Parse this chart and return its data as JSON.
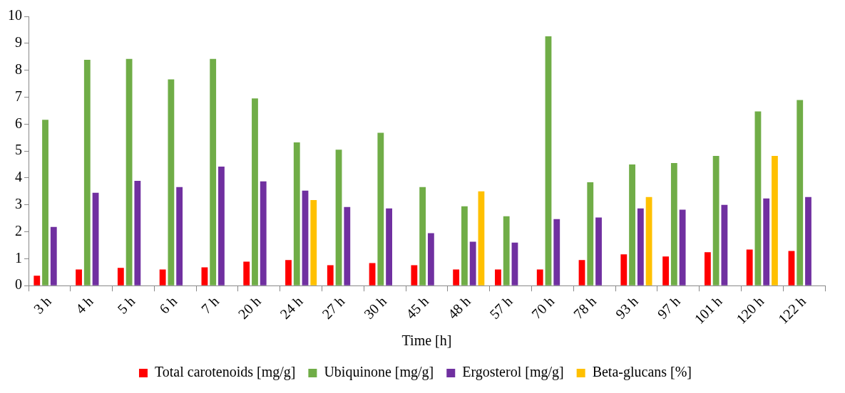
{
  "chart_data": {
    "type": "bar",
    "xlabel": "Time [h]",
    "categories": [
      "3 h",
      "4 h",
      "5 h",
      "6 h",
      "7 h",
      "20 h",
      "24 h",
      "27 h",
      "30 h",
      "45 h",
      "48 h",
      "57 h",
      "70 h",
      "78 h",
      "93 h",
      "97 h",
      "101 h",
      "120 h",
      "122 h"
    ],
    "series": [
      {
        "name": "Total carotenoids [mg/g]",
        "color": "#ff0000",
        "values": [
          0.37,
          0.6,
          0.66,
          0.6,
          0.68,
          0.89,
          0.95,
          0.76,
          0.84,
          0.76,
          0.6,
          0.6,
          0.6,
          0.95,
          1.16,
          1.08,
          1.24,
          1.34,
          1.29
        ]
      },
      {
        "name": "Ubiquinone [mg/g]",
        "color": "#70ad47",
        "values": [
          6.16,
          8.39,
          8.42,
          7.66,
          8.42,
          6.95,
          5.32,
          5.05,
          5.68,
          3.66,
          2.95,
          2.58,
          9.26,
          3.84,
          4.5,
          4.55,
          4.82,
          6.47,
          6.89
        ]
      },
      {
        "name": "Ergosterol [mg/g]",
        "color": "#7030a0",
        "values": [
          2.18,
          3.45,
          3.89,
          3.66,
          4.42,
          3.87,
          3.53,
          2.92,
          2.87,
          1.95,
          1.63,
          1.6,
          2.47,
          2.53,
          2.87,
          2.82,
          3.0,
          3.24,
          3.29
        ]
      },
      {
        "name": "Beta-glucans [%]",
        "color": "#ffc000",
        "values": [
          null,
          null,
          null,
          null,
          null,
          null,
          3.18,
          null,
          null,
          null,
          3.5,
          null,
          null,
          null,
          3.29,
          null,
          null,
          4.82,
          null
        ]
      }
    ],
    "ylim": [
      0,
      10
    ],
    "yticks": [
      0,
      1,
      2,
      3,
      4,
      5,
      6,
      7,
      8,
      9,
      10
    ],
    "grid": false,
    "legend": "bottom"
  }
}
